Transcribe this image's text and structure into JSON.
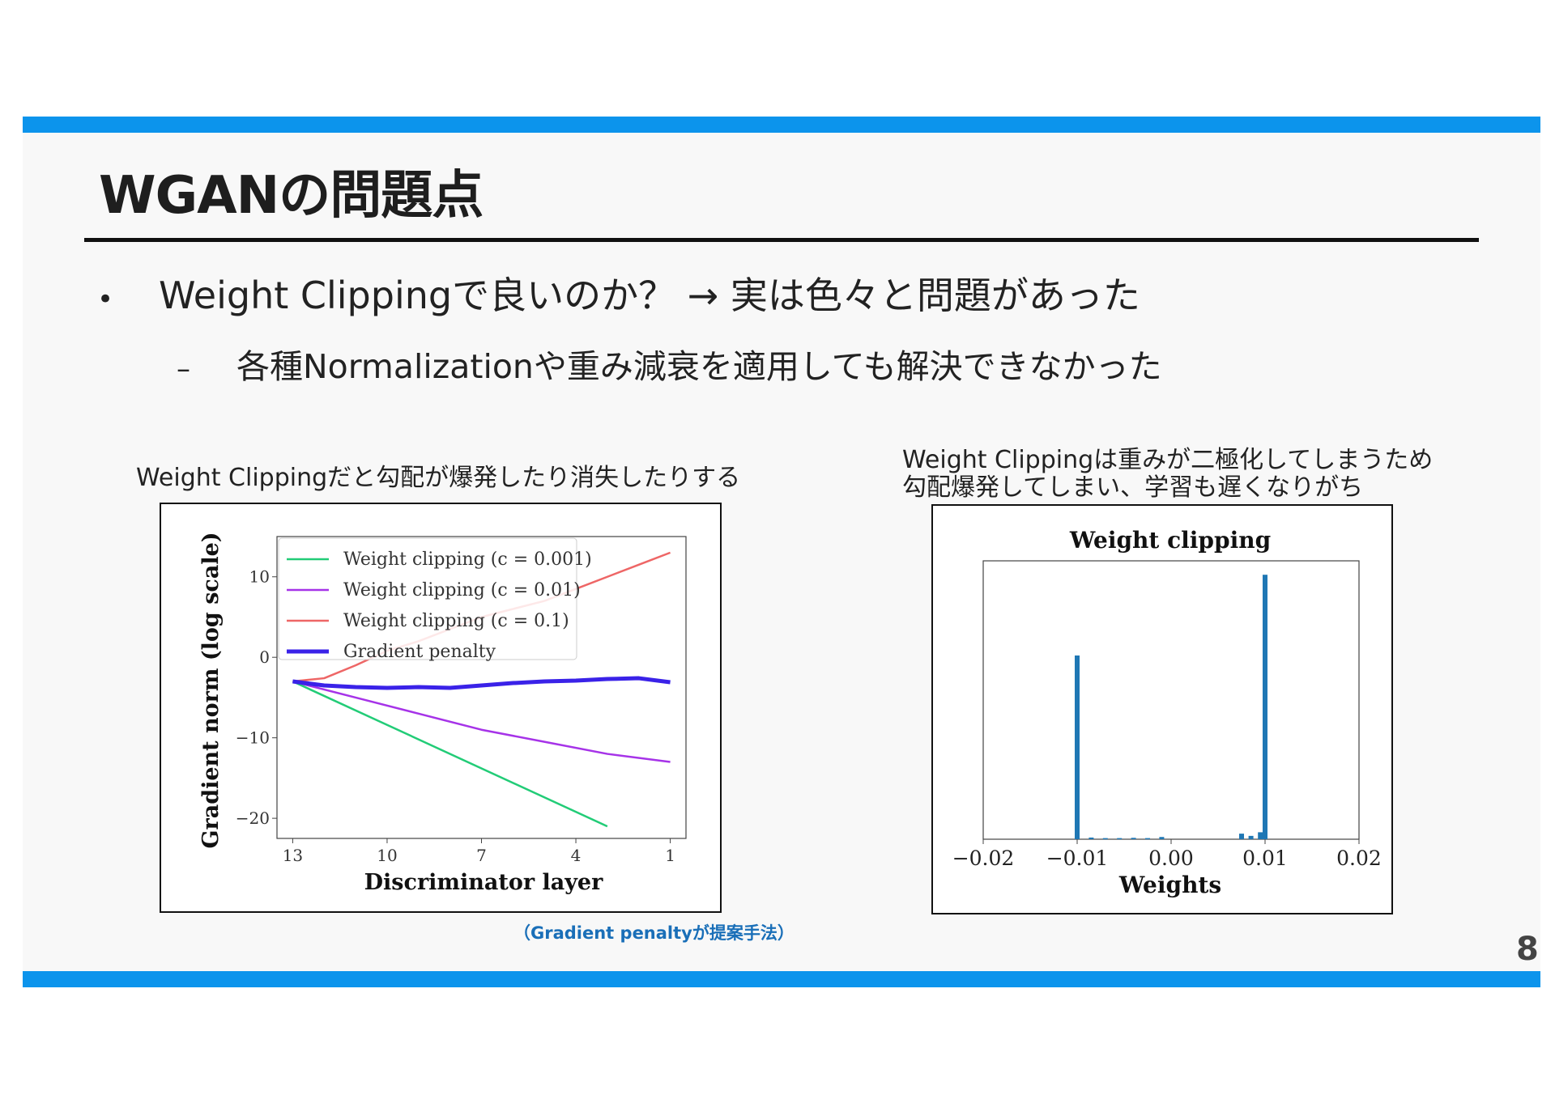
{
  "slide": {
    "title": "WGANの問題点",
    "bullets": [
      {
        "marker": "•",
        "text": "Weight Clippingで良いのか？ → 実は色々と問題があった"
      },
      {
        "marker": "–",
        "text": "各種Normalizationや重み減衰を適用しても解決できなかった"
      }
    ],
    "page_number": "8",
    "colors": {
      "accent_bar": "#0c94ec",
      "note_text": "#1a6fb8"
    }
  },
  "figures": {
    "left_caption": "Weight Clippingだと勾配が爆発したり消失したりする",
    "right_caption_line1": "Weight Clippingは重みが二極化してしまうため",
    "right_caption_line2": "勾配爆発してしまい、学習も遅くなりがち",
    "note": "（Gradient penaltyが提案手法）"
  },
  "chart_data": [
    {
      "type": "line",
      "xlabel": "Discriminator layer",
      "ylabel": "Gradient norm (log scale)",
      "x_ticks": [
        13,
        10,
        7,
        4,
        1
      ],
      "y_ticks": [
        10,
        0,
        -10,
        -20
      ],
      "xlim": [
        13.5,
        0.5
      ],
      "ylim": [
        -22.5,
        15
      ],
      "legend_position": "top-left",
      "series": [
        {
          "name": "Weight clipping (c = 0.001)",
          "color": "#22cc77",
          "width": 2.5,
          "x": [
            13,
            3
          ],
          "y": [
            -3,
            -21
          ]
        },
        {
          "name": "Weight clipping (c = 0.01)",
          "color": "#a633e8",
          "width": 2.5,
          "x": [
            13,
            11,
            9,
            7,
            5,
            3,
            1
          ],
          "y": [
            -3,
            -5,
            -7,
            -9,
            -10.5,
            -12,
            -13
          ]
        },
        {
          "name": "Weight clipping (c = 0.1)",
          "color": "#ee6666",
          "width": 2.5,
          "x": [
            13,
            12,
            11,
            10,
            9,
            8,
            7,
            6,
            5,
            4,
            3,
            2,
            1
          ],
          "y": [
            -3,
            -2.6,
            -1,
            0.8,
            2,
            3.5,
            5,
            6,
            7,
            8.5,
            10,
            11.5,
            13
          ]
        },
        {
          "name": "Gradient penalty",
          "color": "#3a22e8",
          "width": 5,
          "x": [
            13,
            12,
            11,
            10,
            9,
            8,
            7,
            6,
            5,
            4,
            3,
            2,
            1
          ],
          "y": [
            -3,
            -3.5,
            -3.7,
            -3.8,
            -3.7,
            -3.8,
            -3.5,
            -3.2,
            -3,
            -2.9,
            -2.7,
            -2.6,
            -3.1
          ]
        }
      ]
    },
    {
      "type": "bar",
      "title": "Weight clipping",
      "xlabel": "Weights",
      "x_ticks": [
        "−0.02",
        "−0.01",
        "0.00",
        "0.01",
        "0.02"
      ],
      "x_tick_values": [
        -0.02,
        -0.01,
        0.0,
        0.01,
        0.02
      ],
      "xlim": [
        -0.02,
        0.02
      ],
      "ylim": [
        0,
        1.0
      ],
      "color": "#1f77b4",
      "bins": [
        {
          "x": -0.01,
          "value": 0.66
        },
        {
          "x": -0.0085,
          "value": 0.006
        },
        {
          "x": -0.007,
          "value": 0.004
        },
        {
          "x": -0.0055,
          "value": 0.004
        },
        {
          "x": -0.004,
          "value": 0.005
        },
        {
          "x": -0.0025,
          "value": 0.004
        },
        {
          "x": -0.001,
          "value": 0.008
        },
        {
          "x": 0.0075,
          "value": 0.02
        },
        {
          "x": 0.0085,
          "value": 0.012
        },
        {
          "x": 0.0095,
          "value": 0.025
        },
        {
          "x": 0.01,
          "value": 0.95
        }
      ]
    }
  ]
}
